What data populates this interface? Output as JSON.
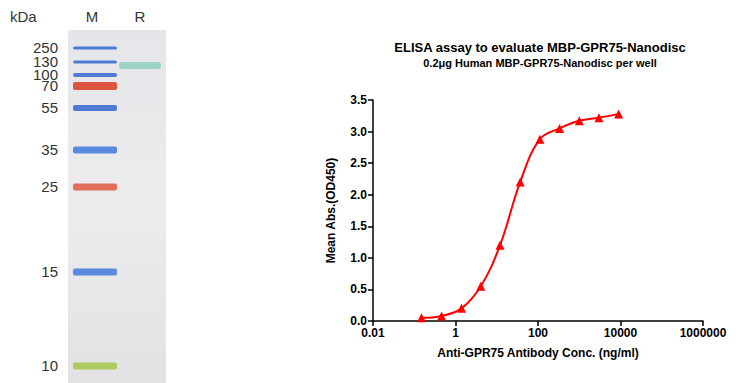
{
  "chart_data": {
    "type": "line",
    "title": "ELISA assay to evaluate MBP-GPR75-Nanodisc",
    "subtitle": "0.2μg Human MBP-GPR75-Nanodisc per well",
    "x_label": "Anti-GPR75 Antibody Conc. (ng/ml)",
    "y_label": "Mean Abs.(OD450)",
    "x": [
      0.15,
      0.46,
      1.4,
      4.1,
      12,
      37,
      111,
      333,
      1000,
      3000,
      9000
    ],
    "values": [
      0.05,
      0.08,
      0.2,
      0.55,
      1.2,
      2.2,
      2.88,
      3.05,
      3.17,
      3.22,
      3.28
    ],
    "color": "#ff0000",
    "marker": "triangle",
    "line_style": "solid",
    "log": "x",
    "grid": false,
    "xlim": [
      0.01,
      1000000
    ],
    "xticks": [
      0.01,
      1,
      100,
      10000,
      1000000
    ],
    "ylim": [
      0,
      3.5
    ],
    "yticks": [
      {
        "value": 0,
        "label": "0.0"
      },
      0.5,
      {
        "value": 1,
        "label": "1.0"
      },
      1.5,
      {
        "value": 2,
        "label": "2.0"
      },
      2.5,
      {
        "value": 3,
        "label": "3.0"
      },
      3.5
    ]
  },
  "gel": {
    "unit_label": "kDa",
    "lanes": [
      "M",
      "R"
    ],
    "marker_labels": [
      250,
      130,
      100,
      70,
      55,
      35,
      25,
      15,
      10
    ]
  }
}
